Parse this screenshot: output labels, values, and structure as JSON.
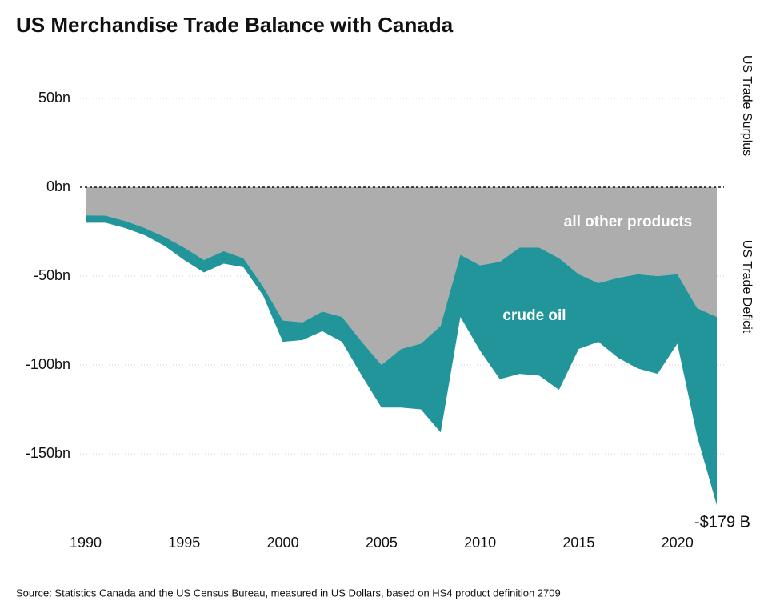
{
  "chart_data": {
    "type": "stacked-area",
    "title": "US Merchandise Trade Balance with Canada",
    "source": "Source: Statistics Canada and the US Census Bureau, measured in US Dollars, based on HS4 product definition 2709",
    "y_label_top": "US Trade Surplus",
    "y_label_bottom": "US Trade Deficit",
    "annotation": "-$179 B",
    "x": [
      1990,
      1991,
      1992,
      1993,
      1994,
      1995,
      1996,
      1997,
      1998,
      1999,
      2000,
      2001,
      2002,
      2003,
      2004,
      2005,
      2006,
      2007,
      2008,
      2009,
      2010,
      2011,
      2012,
      2013,
      2014,
      2015,
      2016,
      2017,
      2018,
      2019,
      2020,
      2021,
      2022
    ],
    "series": [
      {
        "name": "all other products",
        "color": "#adadad",
        "values": [
          -15.8,
          -16,
          -19,
          -23,
          -28,
          -34,
          -41,
          -36,
          -40,
          -56,
          -75,
          -76,
          -70,
          -73,
          -87,
          -100,
          -91,
          -88,
          -78,
          -38,
          -44,
          -42,
          -34,
          -34,
          -40,
          -49,
          -54,
          -51,
          -49,
          -50,
          -49,
          -68,
          -73
        ]
      },
      {
        "name": "crude oil",
        "color": "#21959a",
        "values": [
          -4.2,
          -4,
          -4,
          -4,
          -5,
          -7,
          -7,
          -7,
          -5,
          -5,
          -12,
          -10,
          -11,
          -14,
          -19,
          -24,
          -33,
          -37,
          -60,
          -35,
          -48,
          -66,
          -71,
          -72,
          -74,
          -42,
          -33,
          -45,
          -53,
          -55,
          -39,
          -72,
          -106
        ]
      }
    ],
    "xlim": [
      1990,
      2022
    ],
    "xticks": [
      1990,
      1995,
      2000,
      2005,
      2010,
      2015,
      2020
    ],
    "ylim": [
      -187,
      65
    ],
    "yticks": [
      {
        "value": 50,
        "label": "50bn"
      },
      {
        "value": 0,
        "label": "0bn"
      },
      {
        "value": -50,
        "label": "-50bn"
      },
      {
        "value": -100,
        "label": "-100bn"
      },
      {
        "value": -150,
        "label": "-150bn"
      }
    ],
    "grid": true
  }
}
